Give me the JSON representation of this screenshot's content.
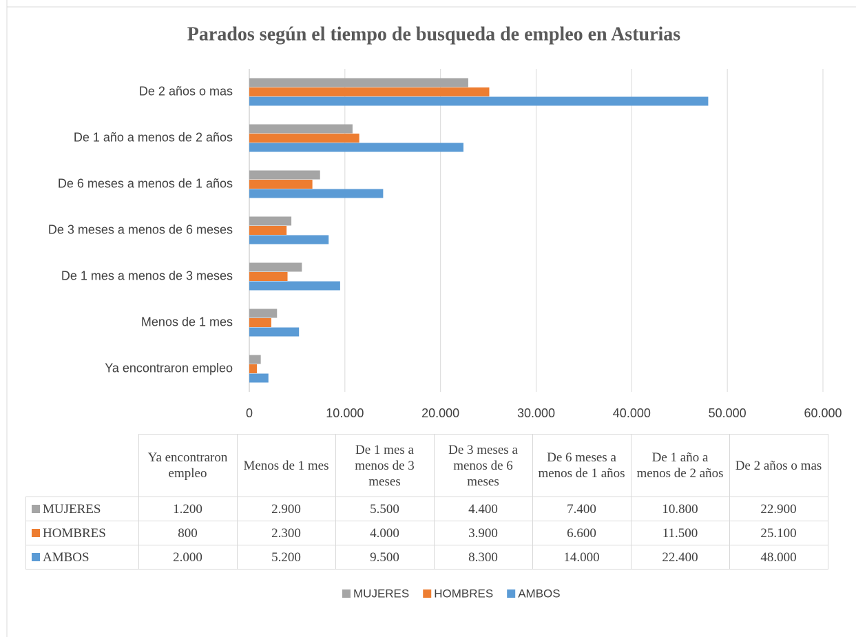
{
  "chart_data": {
    "type": "bar",
    "orientation": "horizontal",
    "title": "Parados según el tiempo de busqueda de empleo en Asturias",
    "categories": [
      "Ya encontraron empleo",
      "Menos de 1 mes",
      "De 1 mes a menos de 3 meses",
      "De 3 meses a menos de 6 meses",
      "De 6 meses a menos de 1 años",
      "De 1 año a menos de 2 años",
      "De 2 años o mas"
    ],
    "series": [
      {
        "name": "MUJERES",
        "color": "#a5a5a5",
        "values": [
          1200,
          2900,
          5500,
          4400,
          7400,
          10800,
          22900
        ],
        "value_labels": [
          "1.200",
          "2.900",
          "5.500",
          "4.400",
          "7.400",
          "10.800",
          "22.900"
        ]
      },
      {
        "name": "HOMBRES",
        "color": "#ed7d31",
        "values": [
          800,
          2300,
          4000,
          3900,
          6600,
          11500,
          25100
        ],
        "value_labels": [
          "800",
          "2.300",
          "4.000",
          "3.900",
          "6.600",
          "11.500",
          "25.100"
        ]
      },
      {
        "name": "AMBOS",
        "color": "#5b9bd5",
        "values": [
          2000,
          5200,
          9500,
          8300,
          14000,
          22400,
          48000
        ],
        "value_labels": [
          "2.000",
          "5.200",
          "9.500",
          "8.300",
          "14.000",
          "22.400",
          "48.000"
        ]
      }
    ],
    "xlim": [
      0,
      60000
    ],
    "xticks": [
      0,
      {
        "value": 10000,
        "label": "10.000"
      },
      {
        "value": 20000,
        "label": "20.000"
      },
      {
        "value": 30000,
        "label": "30.000"
      },
      {
        "value": 40000,
        "label": "40.000"
      },
      {
        "value": 50000,
        "label": "50.000"
      },
      {
        "value": 60000,
        "label": "60.000"
      }
    ],
    "grid": true,
    "legend": "bottom",
    "data_table": true
  }
}
